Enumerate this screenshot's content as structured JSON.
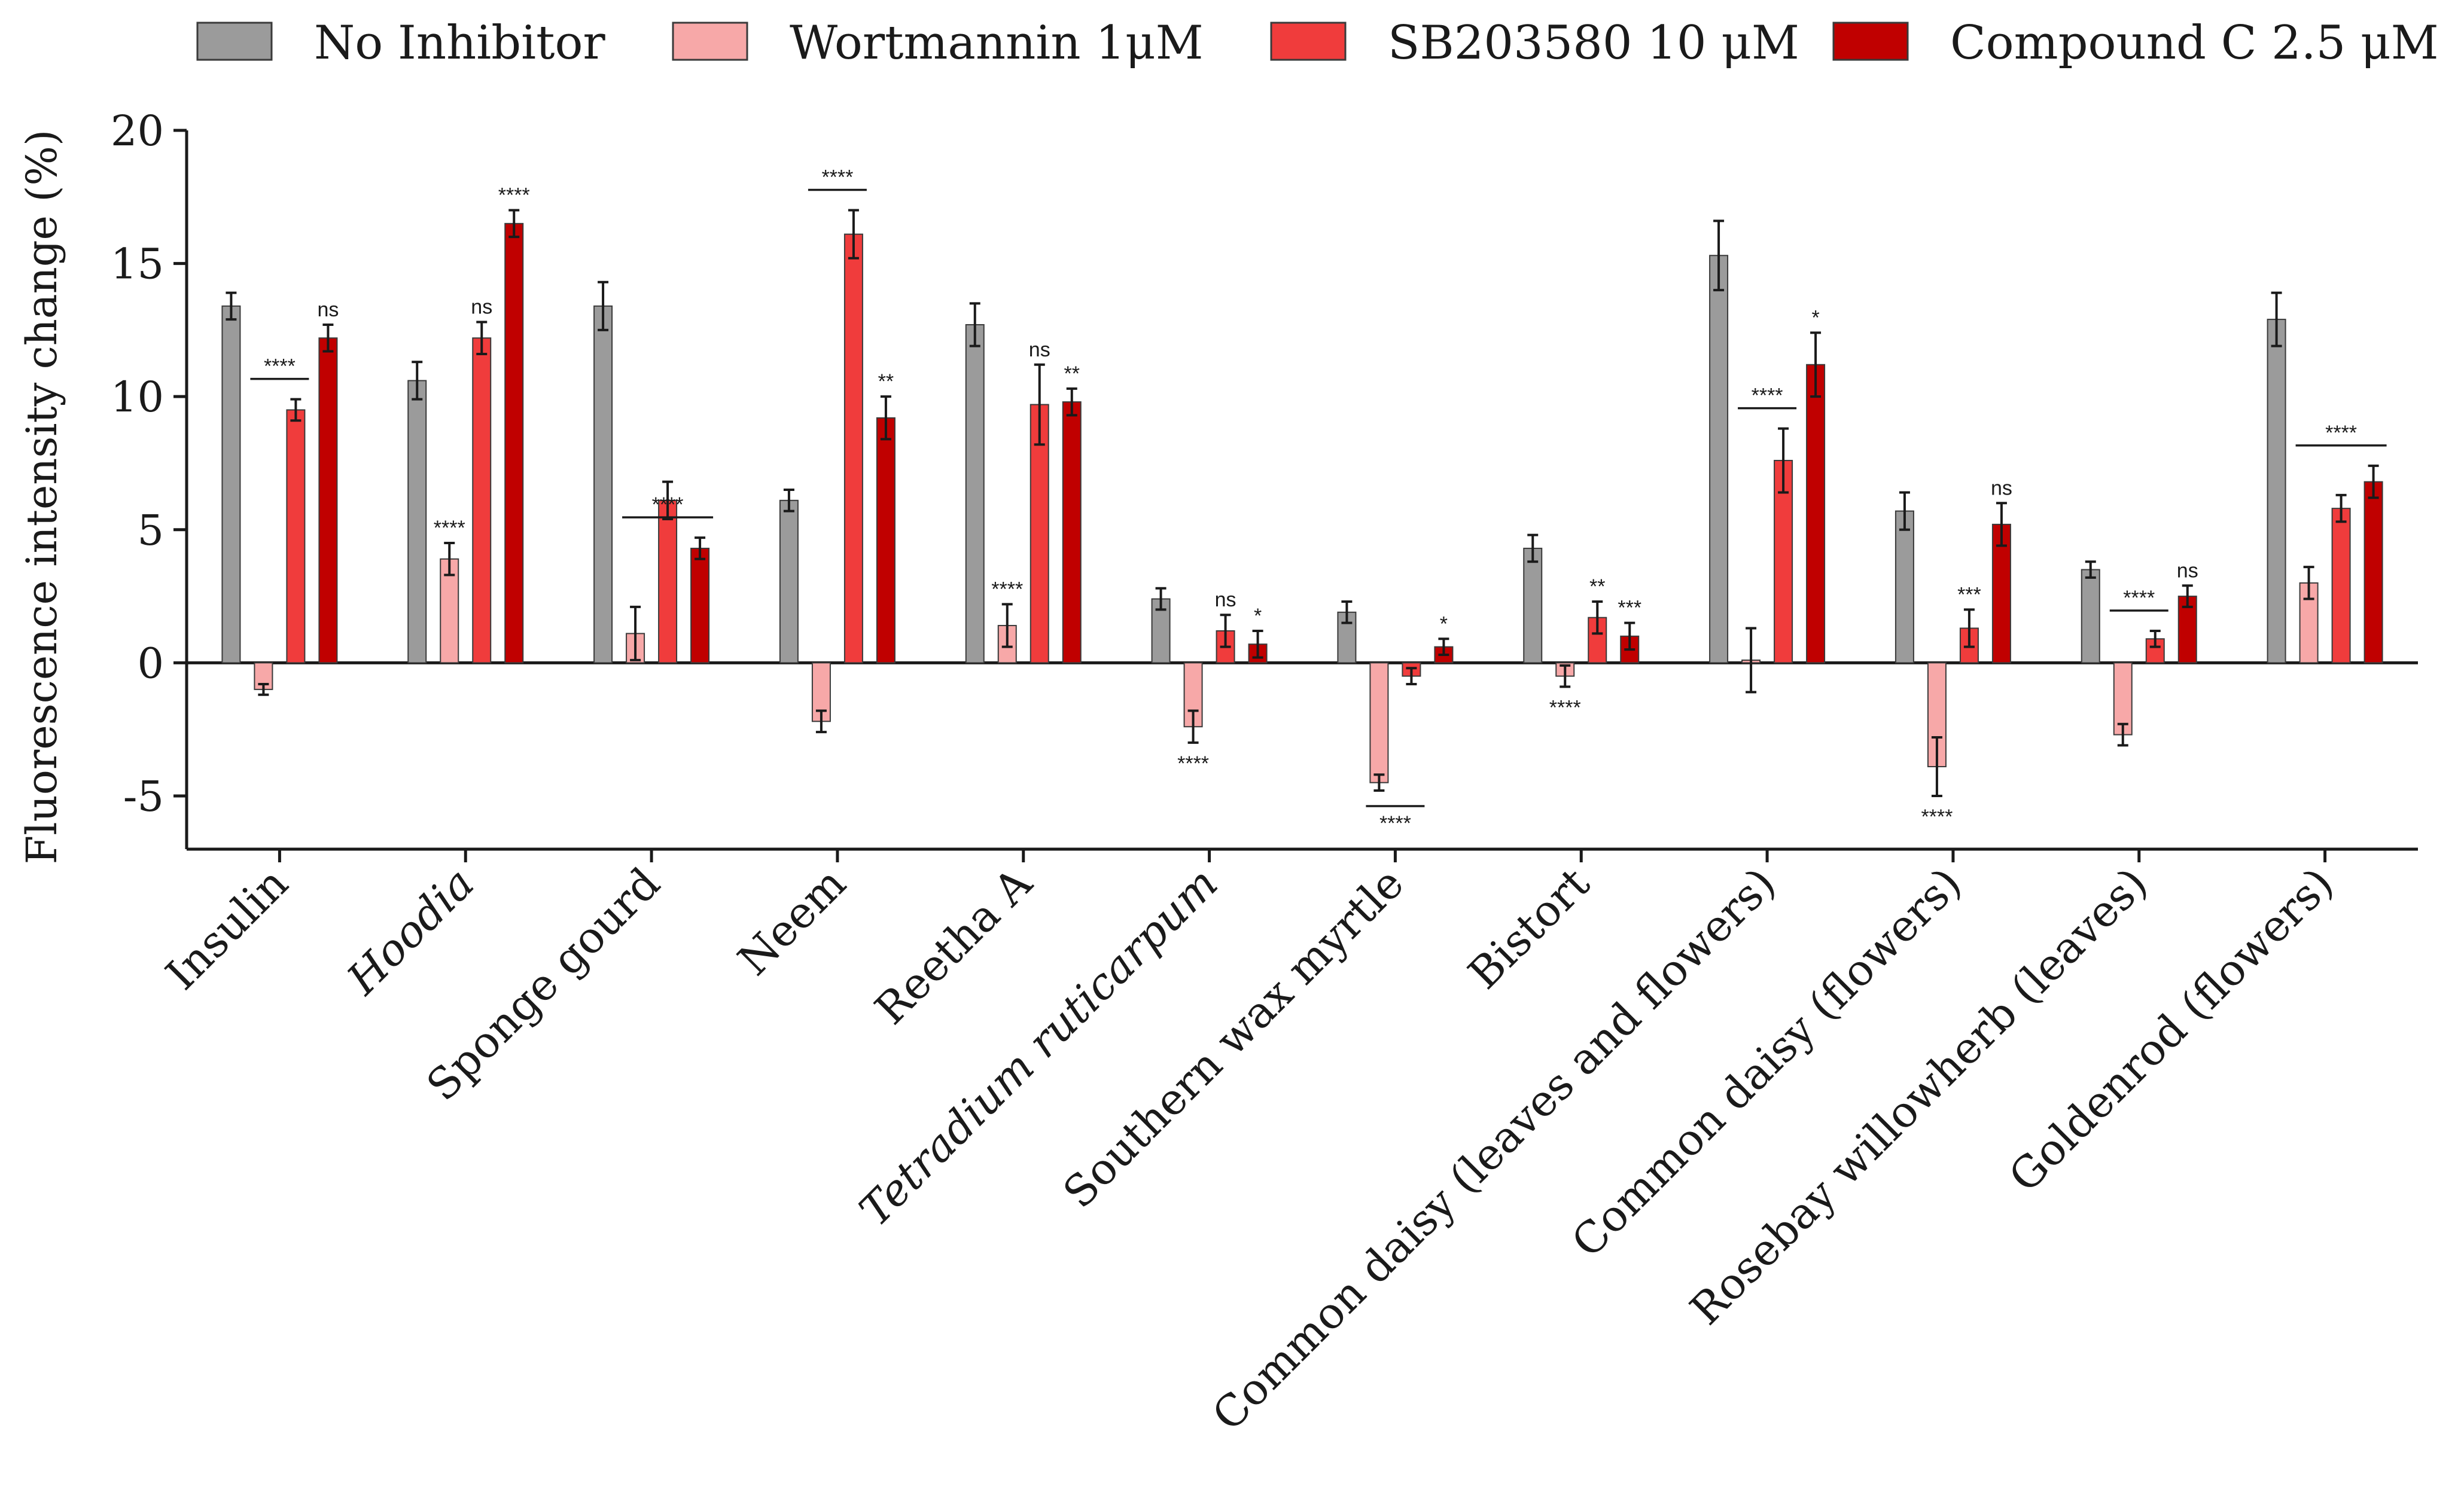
{
  "chart_data": {
    "type": "bar",
    "title": "",
    "xlabel": "",
    "ylabel": "Fluorescence intensity change (%)",
    "ylim": [
      -7,
      20
    ],
    "yticks": [
      -5,
      0,
      5,
      10,
      15,
      20
    ],
    "grid": false,
    "legend_position": "top",
    "categories": [
      "Insulin",
      "Hoodia",
      "Sponge gourd",
      "Neem",
      "Reetha A",
      "Tetradium ruticarpum",
      "Southern wax myrtle",
      "Bistort",
      "Common daisy (leaves and flowers)",
      "Common daisy (flowers)",
      "Rosebay willowherb (leaves)",
      "Goldenrod (flowers)"
    ],
    "italic_categories": [
      "Hoodia",
      "Tetradium ruticarpum"
    ],
    "series": [
      {
        "name": "No Inhibitor",
        "color": "#9b9b9b",
        "values": [
          13.4,
          10.6,
          13.4,
          6.1,
          12.7,
          2.4,
          1.9,
          4.3,
          15.3,
          5.7,
          3.5,
          12.9
        ],
        "errors": [
          0.5,
          0.7,
          0.9,
          0.4,
          0.8,
          0.4,
          0.4,
          0.5,
          1.3,
          0.7,
          0.3,
          1.0
        ]
      },
      {
        "name": "Wortmannin 1μM",
        "color": "#f7a8a8",
        "values": [
          -1.0,
          3.9,
          1.1,
          -2.2,
          1.4,
          -2.4,
          -4.5,
          -0.5,
          0.1,
          -3.9,
          -2.7,
          3.0
        ],
        "errors": [
          0.2,
          0.6,
          1.0,
          0.4,
          0.8,
          0.6,
          0.3,
          0.4,
          1.2,
          1.1,
          0.4,
          0.6
        ]
      },
      {
        "name": "SB203580 10 μM",
        "color": "#f03c3c",
        "values": [
          9.5,
          12.2,
          6.1,
          16.1,
          9.7,
          1.2,
          -0.5,
          1.7,
          7.6,
          1.3,
          0.9,
          5.8
        ],
        "errors": [
          0.4,
          0.6,
          0.7,
          0.9,
          1.5,
          0.6,
          0.3,
          0.6,
          1.2,
          0.7,
          0.3,
          0.5
        ]
      },
      {
        "name": "Compound C 2.5 μM",
        "color": "#c00000",
        "values": [
          12.2,
          16.5,
          4.3,
          9.2,
          9.8,
          0.7,
          0.6,
          1.0,
          11.2,
          5.2,
          2.5,
          6.8
        ],
        "errors": [
          0.5,
          0.5,
          0.4,
          0.8,
          0.5,
          0.5,
          0.3,
          0.5,
          1.2,
          0.8,
          0.4,
          0.6
        ]
      }
    ],
    "annotations": [
      {
        "category": 0,
        "series": [
          1,
          2
        ],
        "type": "bracket",
        "text": "****"
      },
      {
        "category": 0,
        "series": 3,
        "type": "above",
        "text": "ns"
      },
      {
        "category": 1,
        "series": 1,
        "type": "above",
        "text": "****"
      },
      {
        "category": 1,
        "series": 2,
        "type": "above",
        "text": "ns"
      },
      {
        "category": 1,
        "series": 3,
        "type": "above",
        "text": "****"
      },
      {
        "category": 2,
        "series": [
          1,
          3
        ],
        "type": "bracket",
        "text": "****"
      },
      {
        "category": 3,
        "series": [
          1,
          2
        ],
        "type": "bracket",
        "text": "****"
      },
      {
        "category": 3,
        "series": 3,
        "type": "above",
        "text": "**"
      },
      {
        "category": 4,
        "series": 1,
        "type": "above",
        "text": "****"
      },
      {
        "category": 4,
        "series": 2,
        "type": "above",
        "text": "ns"
      },
      {
        "category": 4,
        "series": 3,
        "type": "above",
        "text": "**"
      },
      {
        "category": 5,
        "series": 1,
        "type": "below",
        "text": "****"
      },
      {
        "category": 5,
        "series": 2,
        "type": "above",
        "text": "ns"
      },
      {
        "category": 5,
        "series": 3,
        "type": "above",
        "text": "*"
      },
      {
        "category": 6,
        "series": [
          1,
          2
        ],
        "type": "bracket-below",
        "text": "****"
      },
      {
        "category": 6,
        "series": 3,
        "type": "above",
        "text": "*"
      },
      {
        "category": 7,
        "series": 1,
        "type": "below",
        "text": "****"
      },
      {
        "category": 7,
        "series": 2,
        "type": "above",
        "text": "**"
      },
      {
        "category": 7,
        "series": 3,
        "type": "above",
        "text": "***"
      },
      {
        "category": 8,
        "series": [
          1,
          2
        ],
        "type": "bracket",
        "text": "****"
      },
      {
        "category": 8,
        "series": 3,
        "type": "above",
        "text": "*"
      },
      {
        "category": 9,
        "series": 1,
        "type": "below",
        "text": "****"
      },
      {
        "category": 9,
        "series": 2,
        "type": "above",
        "text": "***"
      },
      {
        "category": 9,
        "series": 3,
        "type": "above",
        "text": "ns"
      },
      {
        "category": 10,
        "series": [
          1,
          2
        ],
        "type": "bracket",
        "text": "****"
      },
      {
        "category": 10,
        "series": 3,
        "type": "above",
        "text": "ns"
      },
      {
        "category": 11,
        "series": [
          1,
          3
        ],
        "type": "bracket",
        "text": "****"
      }
    ]
  }
}
